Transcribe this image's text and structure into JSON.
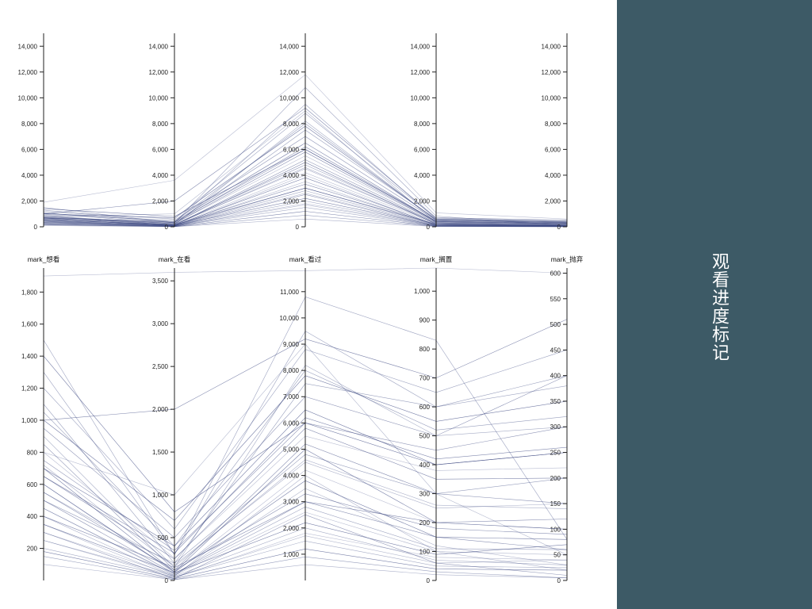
{
  "side_panel": {
    "title": "观看进度标记",
    "color": "#3d5a66"
  },
  "chart_data": [
    {
      "type": "parallel-coordinates",
      "line_color": "#3a4680",
      "axes": [
        {
          "label": "",
          "ylim": [
            0,
            15000
          ],
          "ticks": [
            0,
            2000,
            4000,
            6000,
            8000,
            10000,
            12000,
            14000
          ],
          "tick_labels": [
            "0",
            "2,000",
            "4,000",
            "6,000",
            "8,000",
            "10,000",
            "12,000",
            "14,000"
          ]
        },
        {
          "label": "",
          "ylim": [
            0,
            15000
          ],
          "ticks": [
            0,
            2000,
            4000,
            6000,
            8000,
            10000,
            12000,
            14000
          ],
          "tick_labels": [
            "0",
            "2,000",
            "4,000",
            "6,000",
            "8,000",
            "10,000",
            "12,000",
            "14,000"
          ]
        },
        {
          "label": "",
          "ylim": [
            0,
            15000
          ],
          "ticks": [
            0,
            2000,
            4000,
            6000,
            8000,
            10000,
            12000,
            14000
          ],
          "tick_labels": [
            "0",
            "2,000",
            "4,000",
            "6,000",
            "8,000",
            "10,000",
            "12,000",
            "14,000"
          ]
        },
        {
          "label": "",
          "ylim": [
            0,
            15000
          ],
          "ticks": [
            0,
            2000,
            4000,
            6000,
            8000,
            10000,
            12000,
            14000
          ],
          "tick_labels": [
            "0",
            "2,000",
            "4,000",
            "6,000",
            "8,000",
            "10,000",
            "12,000",
            "14,000"
          ]
        },
        {
          "label": "",
          "ylim": [
            0,
            15000
          ],
          "ticks": [
            0,
            2000,
            4000,
            6000,
            8000,
            10000,
            12000,
            14000
          ],
          "tick_labels": [
            "0",
            "2,000",
            "4,000",
            "6,000",
            "8,000",
            "10,000",
            "12,000",
            "14,000"
          ]
        }
      ],
      "records": [
        [
          1900,
          3600,
          11800,
          1080,
          600
        ],
        [
          1500,
          300,
          10800,
          830,
          80
        ],
        [
          1000,
          2000,
          9200,
          700,
          510
        ],
        [
          800,
          1000,
          9000,
          300,
          50
        ],
        [
          1100,
          200,
          7500,
          600,
          400
        ],
        [
          600,
          100,
          5000,
          200,
          100
        ],
        [
          400,
          50,
          4000,
          100,
          20
        ],
        [
          300,
          20,
          2500,
          60,
          10
        ],
        [
          700,
          400,
          6500,
          400,
          250
        ],
        [
          900,
          150,
          8200,
          500,
          300
        ],
        [
          500,
          80,
          3000,
          150,
          60
        ],
        [
          250,
          30,
          1800,
          80,
          40
        ],
        [
          1200,
          600,
          8800,
          650,
          450
        ],
        [
          650,
          250,
          5800,
          350,
          200
        ],
        [
          450,
          60,
          3500,
          120,
          30
        ],
        [
          150,
          10,
          900,
          30,
          5
        ],
        [
          350,
          90,
          2200,
          90,
          70
        ],
        [
          550,
          180,
          4500,
          250,
          150
        ],
        [
          750,
          350,
          6000,
          450,
          300
        ],
        [
          1000,
          700,
          7800,
          550,
          350
        ],
        [
          200,
          40,
          1500,
          50,
          25
        ],
        [
          850,
          120,
          5200,
          300,
          150
        ],
        [
          600,
          90,
          4200,
          200,
          100
        ],
        [
          1300,
          300,
          9500,
          600,
          380
        ],
        [
          400,
          150,
          3000,
          200,
          120
        ],
        [
          300,
          60,
          2600,
          100,
          50
        ],
        [
          500,
          200,
          4800,
          300,
          200
        ],
        [
          700,
          100,
          3800,
          150,
          80
        ],
        [
          100,
          10,
          600,
          20,
          5
        ],
        [
          950,
          500,
          7000,
          500,
          400
        ],
        [
          1400,
          800,
          6000,
          400,
          250
        ],
        [
          250,
          50,
          2000,
          70,
          30
        ],
        [
          550,
          120,
          3300,
          180,
          90
        ],
        [
          800,
          260,
          5500,
          380,
          220
        ],
        [
          450,
          70,
          2800,
          110,
          60
        ],
        [
          650,
          320,
          6200,
          420,
          260
        ],
        [
          350,
          40,
          1700,
          60,
          40
        ],
        [
          1050,
          400,
          8000,
          520,
          320
        ],
        [
          180,
          20,
          1200,
          40,
          20
        ],
        [
          720,
          160,
          4600,
          260,
          140
        ]
      ]
    },
    {
      "type": "parallel-coordinates",
      "line_color": "#3a4680",
      "axes": [
        {
          "label": "mark_想看",
          "ylim": [
            0,
            1950
          ],
          "ticks": [
            200,
            400,
            600,
            800,
            1000,
            1200,
            1400,
            1600,
            1800
          ],
          "tick_labels": [
            "200",
            "400",
            "600",
            "800",
            "1,000",
            "1,200",
            "1,400",
            "1,600",
            "1,800"
          ]
        },
        {
          "label": "mark_在看",
          "ylim": [
            0,
            3650
          ],
          "ticks": [
            0,
            500,
            1000,
            1500,
            2000,
            2500,
            3000,
            3500
          ],
          "tick_labels": [
            "0",
            "500",
            "1,000",
            "1,500",
            "2,000",
            "2,500",
            "3,000",
            "3,500"
          ]
        },
        {
          "label": "mark_看过",
          "ylim": [
            0,
            11900
          ],
          "ticks": [
            1000,
            2000,
            3000,
            4000,
            5000,
            6000,
            7000,
            8000,
            9000,
            10000,
            11000
          ],
          "tick_labels": [
            "1,000",
            "2,000",
            "3,000",
            "4,000",
            "5,000",
            "6,000",
            "7,000",
            "8,000",
            "9,000",
            "10,000",
            "11,000"
          ]
        },
        {
          "label": "mark_搁置",
          "ylim": [
            0,
            1080
          ],
          "ticks": [
            0,
            100,
            200,
            300,
            400,
            500,
            600,
            700,
            800,
            900,
            1000
          ],
          "tick_labels": [
            "0",
            "100",
            "200",
            "300",
            "400",
            "500",
            "600",
            "700",
            "800",
            "900",
            "1,000"
          ]
        },
        {
          "label": "mark_抛弃",
          "ylim": [
            0,
            610
          ],
          "ticks": [
            0,
            50,
            100,
            150,
            200,
            250,
            300,
            350,
            400,
            450,
            500,
            550,
            600
          ],
          "tick_labels": [
            "0",
            "50",
            "100",
            "150",
            "200",
            "250",
            "300",
            "350",
            "400",
            "450",
            "500",
            "550",
            "600"
          ]
        }
      ],
      "records": "same-as-above"
    }
  ]
}
